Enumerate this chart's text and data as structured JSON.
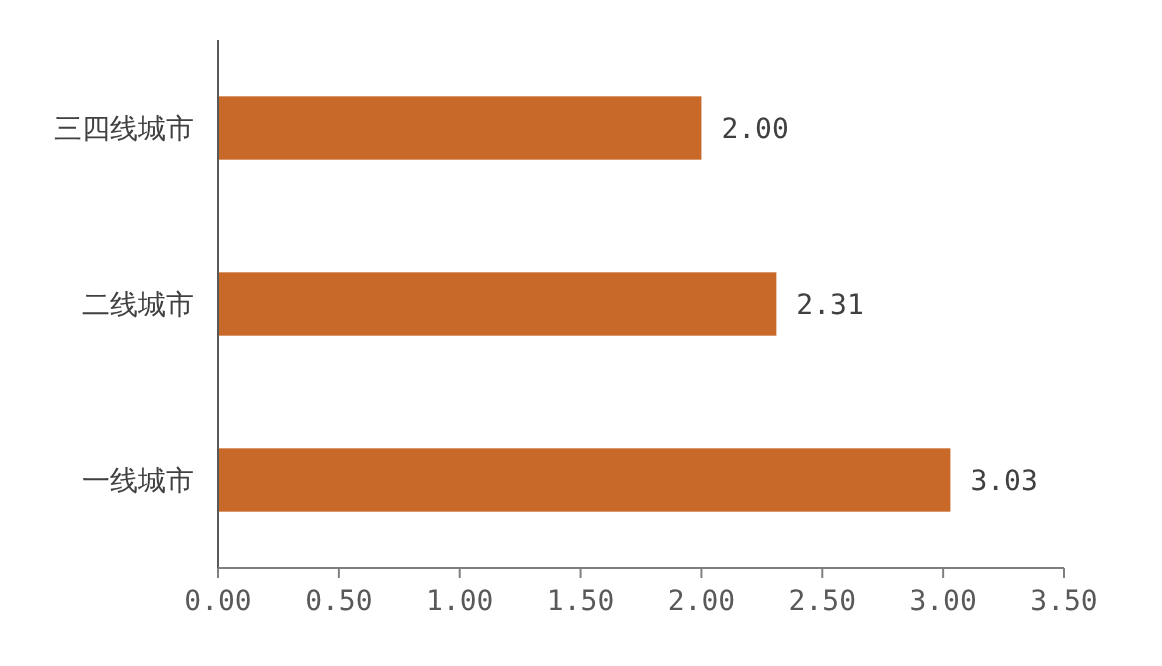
{
  "chart_data": {
    "type": "bar",
    "orientation": "horizontal",
    "categories": [
      "三四线城市",
      "二线城市",
      "一线城市"
    ],
    "values": [
      2.0,
      2.31,
      3.03
    ],
    "color": "#c8692a",
    "value_labels": [
      "2.00",
      "2.31",
      "3.03"
    ],
    "xlim": [
      0,
      3.5
    ],
    "xticks": [
      {
        "value": 0,
        "label": "0.00"
      },
      {
        "value": 0.5,
        "label": "0.50"
      },
      {
        "value": 1,
        "label": "1.00"
      },
      {
        "value": 1.5,
        "label": "1.50"
      },
      {
        "value": 2,
        "label": "2.00"
      },
      {
        "value": 2.5,
        "label": "2.50"
      },
      {
        "value": 3,
        "label": "3.00"
      },
      {
        "value": 3.5,
        "label": "3.50"
      }
    ],
    "grid": false
  }
}
